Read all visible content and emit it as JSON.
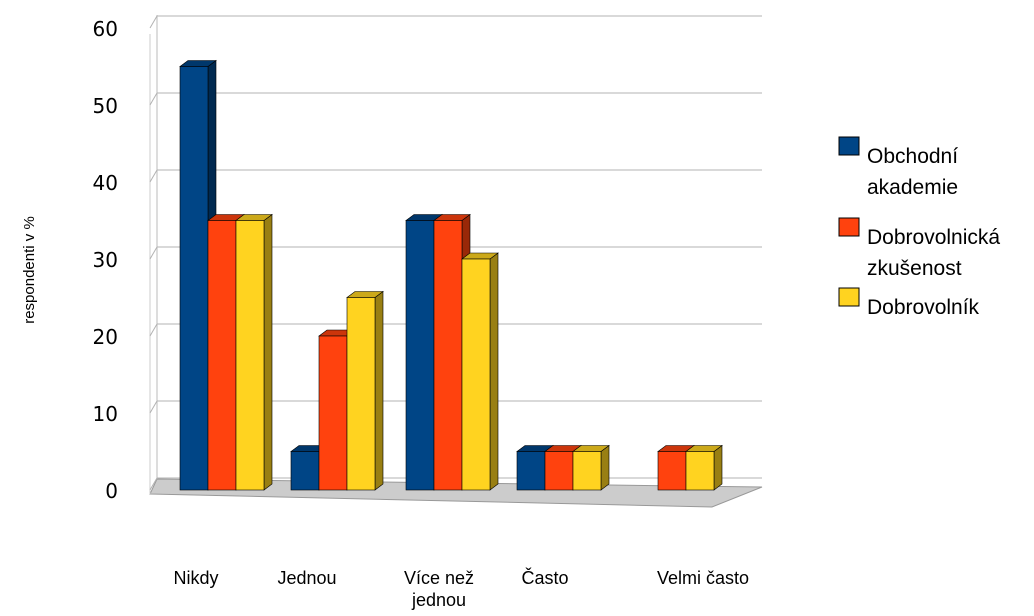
{
  "chart_data": {
    "type": "bar",
    "ylabel": "respondenti v %",
    "ylim": [
      0,
      60
    ],
    "yticks": [
      0,
      10,
      20,
      30,
      40,
      50,
      60
    ],
    "grid": true,
    "legend_position": "right",
    "categories": [
      [
        "Nikdy"
      ],
      [
        "Jednou"
      ],
      [
        "Více než",
        "jednou"
      ],
      [
        "Často"
      ],
      [
        "Velmi často"
      ]
    ],
    "series": [
      {
        "name_lines": [
          "Obchodní",
          "akademie"
        ],
        "color": "#004586",
        "values": [
          55,
          5,
          35,
          5,
          0
        ]
      },
      {
        "name_lines": [
          "Dobrovolnická",
          "zkušenost"
        ],
        "color": "#ff420e",
        "values": [
          35,
          20,
          35,
          5,
          5
        ]
      },
      {
        "name_lines": [
          "Dobrovolník"
        ],
        "color": "#ffd320",
        "values": [
          35,
          25,
          30,
          5,
          5
        ]
      }
    ]
  }
}
